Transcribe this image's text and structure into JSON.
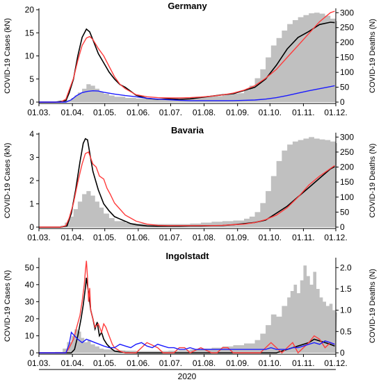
{
  "figure": {
    "bottom_label": "2020"
  },
  "colors": {
    "bars": "#c0c0c0",
    "black": "#000000",
    "red": "#ff3b3b",
    "blue": "#1a1aff"
  },
  "chart_data": [
    {
      "type": "line",
      "title": "Germany",
      "ylabel": "COVID-19 Cases (kN)",
      "y2label": "COVID-19 Deaths (N)",
      "ylim": [
        0,
        20
      ],
      "y2lim": [
        0,
        310
      ],
      "y_ticks": [
        "0",
        "5",
        "10",
        "15",
        "20"
      ],
      "y2_ticks": [
        "0",
        "50",
        "100",
        "150",
        "200",
        "250",
        "300"
      ],
      "x_ticks": [
        "01.03.",
        "01.04.",
        "01.05.",
        "01.06.",
        "01.07.",
        "01.08.",
        "01.09.",
        "01.10.",
        "01.11.",
        "01.12."
      ],
      "bars_deaths": {
        "x": [
          0,
          10,
          20,
          25,
          30,
          33,
          36,
          40,
          44,
          48,
          52,
          56,
          60,
          65,
          70,
          80,
          90,
          100,
          110,
          120,
          130,
          140,
          150,
          160,
          170,
          180,
          185,
          190,
          195,
          200,
          205,
          210,
          215,
          220,
          225,
          230,
          235,
          240,
          245,
          250,
          255,
          260,
          265,
          270,
          275
        ],
        "values": [
          0,
          0.5,
          2,
          6,
          14,
          22,
          32,
          45,
          60,
          55,
          45,
          35,
          28,
          22,
          18,
          14,
          12,
          10,
          8,
          8,
          10,
          14,
          18,
          20,
          25,
          28,
          30,
          40,
          55,
          80,
          110,
          150,
          190,
          215,
          240,
          262,
          275,
          285,
          292,
          298,
          300,
          297,
          290,
          280,
          272
        ]
      },
      "series": [
        {
          "color": "black",
          "axis": "left",
          "x": [
            0,
            15,
            25,
            28,
            32,
            36,
            40,
            44,
            47,
            50,
            55,
            60,
            65,
            70,
            75,
            80,
            90,
            100,
            110,
            120,
            130,
            140,
            150,
            160,
            170,
            180,
            190,
            200,
            210,
            220,
            230,
            240,
            250,
            260,
            270,
            274
          ],
          "values": [
            0,
            0,
            0.3,
            2,
            5,
            10,
            14,
            15.8,
            15.2,
            13.5,
            10.5,
            8.5,
            6.5,
            5,
            3.8,
            3.2,
            1.5,
            0.8,
            0.6,
            0.7,
            0.6,
            0.7,
            1.0,
            1.3,
            1.6,
            1.8,
            2.5,
            3.2,
            5,
            8,
            11.5,
            14,
            15.3,
            16.8,
            17.3,
            17.2
          ]
        },
        {
          "color": "red",
          "axis": "right",
          "x": [
            0,
            20,
            25,
            28,
            32,
            36,
            40,
            44,
            47,
            50,
            55,
            60,
            65,
            70,
            75,
            80,
            90,
            100,
            110,
            120,
            130,
            140,
            150,
            160,
            170,
            180,
            190,
            200,
            210,
            220,
            230,
            240,
            250,
            260,
            270,
            274
          ],
          "values": [
            0,
            0,
            10,
            40,
            80,
            140,
            190,
            215,
            220,
            210,
            180,
            155,
            120,
            85,
            60,
            45,
            25,
            18,
            15,
            14,
            14,
            15,
            17,
            20,
            24,
            30,
            40,
            55,
            80,
            110,
            150,
            190,
            230,
            270,
            300,
            305
          ]
        },
        {
          "color": "blue",
          "axis": "right",
          "x": [
            0,
            25,
            30,
            35,
            40,
            45,
            50,
            55,
            60,
            70,
            80,
            90,
            100,
            110,
            120,
            130,
            140,
            150,
            160,
            170,
            180,
            190,
            200,
            210,
            220,
            230,
            240,
            250,
            260,
            270,
            274
          ],
          "values": [
            0,
            0,
            8,
            22,
            32,
            36,
            38,
            37,
            33,
            27,
            22,
            18,
            13,
            10,
            8,
            6,
            5,
            5,
            5,
            5,
            5,
            6,
            7,
            10,
            15,
            22,
            30,
            38,
            45,
            52,
            55
          ]
        }
      ]
    },
    {
      "type": "line",
      "title": "Bavaria",
      "ylabel": "COVID-19 Cases (kN)",
      "y2label": "COVID-19 Deaths (N)",
      "ylim": [
        0,
        4
      ],
      "y2lim": [
        0,
        310
      ],
      "y_ticks": [
        "0",
        "1",
        "2",
        "3",
        "4"
      ],
      "y2_ticks": [
        "0",
        "50",
        "100",
        "150",
        "200",
        "250",
        "300"
      ],
      "x_ticks": [
        "01.03.",
        "01.04.",
        "01.05.",
        "01.06.",
        "01.07.",
        "01.08.",
        "01.09.",
        "01.10.",
        "01.11.",
        "01.12."
      ],
      "bars_deaths": {
        "x": [
          0,
          10,
          20,
          24,
          28,
          32,
          36,
          40,
          44,
          48,
          52,
          56,
          60,
          65,
          70,
          80,
          90,
          100,
          110,
          120,
          130,
          140,
          150,
          160,
          170,
          180,
          190,
          195,
          200,
          205,
          210,
          215,
          220,
          225,
          230,
          235,
          240,
          245,
          250,
          255,
          260,
          265,
          270,
          275
        ],
        "values": [
          0,
          1,
          5,
          15,
          35,
          60,
          85,
          110,
          120,
          105,
          85,
          65,
          45,
          30,
          20,
          14,
          12,
          10,
          10,
          10,
          10,
          12,
          15,
          18,
          20,
          22,
          28,
          35,
          50,
          80,
          120,
          170,
          220,
          255,
          275,
          285,
          290,
          295,
          300,
          295,
          292,
          290,
          285,
          280
        ]
      },
      "series": [
        {
          "color": "black",
          "axis": "left",
          "x": [
            0,
            20,
            26,
            30,
            34,
            38,
            41,
            43,
            45,
            47,
            50,
            55,
            60,
            65,
            70,
            75,
            80,
            85,
            90,
            100,
            110,
            120,
            130,
            140,
            150,
            160,
            170,
            180,
            190,
            200,
            210,
            220,
            230,
            240,
            250,
            260,
            270,
            274
          ],
          "values": [
            0,
            0,
            0.05,
            0.6,
            1.6,
            2.8,
            3.6,
            3.8,
            3.75,
            3.2,
            2.4,
            1.6,
            1.0,
            0.7,
            0.45,
            0.35,
            0.25,
            0.15,
            0.1,
            0.05,
            0.04,
            0.04,
            0.04,
            0.05,
            0.05,
            0.06,
            0.07,
            0.1,
            0.15,
            0.2,
            0.3,
            0.6,
            0.9,
            1.3,
            1.7,
            2.1,
            2.5,
            2.6
          ]
        },
        {
          "color": "red",
          "axis": "right",
          "x": [
            0,
            20,
            25,
            28,
            32,
            36,
            40,
            43,
            46,
            48,
            50,
            53,
            56,
            60,
            63,
            66,
            70,
            75,
            80,
            85,
            90,
            95,
            100,
            110,
            120,
            130,
            140,
            150,
            160,
            170,
            180,
            190,
            200,
            210,
            220,
            230,
            240,
            250,
            260,
            270,
            274
          ],
          "values": [
            0,
            0,
            5,
            30,
            80,
            150,
            210,
            245,
            250,
            230,
            210,
            200,
            170,
            160,
            130,
            110,
            80,
            60,
            40,
            30,
            20,
            15,
            10,
            6,
            5,
            5,
            5,
            5,
            5,
            6,
            8,
            10,
            15,
            25,
            40,
            65,
            100,
            140,
            170,
            195,
            205
          ]
        }
      ]
    },
    {
      "type": "line",
      "title": "Ingolstadt",
      "ylabel": "COVID-19 Cases (N)",
      "y2label": "COVID-19 Deaths (N)",
      "ylim": [
        0,
        55
      ],
      "y2lim": [
        0,
        2.2
      ],
      "y_ticks": [
        "0",
        "10",
        "20",
        "30",
        "40",
        "50"
      ],
      "y2_ticks": [
        "0",
        "0.5",
        "1.0",
        "1.5",
        "2.0"
      ],
      "x_ticks": [
        "01.03.",
        "01.04.",
        "01.05.",
        "01.06.",
        "01.07.",
        "01.08.",
        "01.09.",
        "01.10.",
        "01.11.",
        "01.12."
      ],
      "bars_deaths": {
        "x": [
          0,
          15,
          22,
          26,
          30,
          33,
          36,
          39,
          42,
          45,
          48,
          52,
          56,
          60,
          70,
          80,
          90,
          100,
          110,
          120,
          130,
          140,
          150,
          160,
          170,
          180,
          190,
          200,
          205,
          210,
          215,
          220,
          225,
          230,
          233,
          236,
          239,
          242,
          245,
          248,
          251,
          254,
          257,
          260,
          263,
          266,
          269,
          272,
          275
        ],
        "values": [
          0,
          0.02,
          0.1,
          0.25,
          0.4,
          0.55,
          0.5,
          0.35,
          0.25,
          0.3,
          0.2,
          0.15,
          0.1,
          0.08,
          0.06,
          0.05,
          0.04,
          0.04,
          0.04,
          0.05,
          0.06,
          0.08,
          0.1,
          0.12,
          0.15,
          0.18,
          0.22,
          0.3,
          0.45,
          0.65,
          0.9,
          0.85,
          1.1,
          1.3,
          1.45,
          1.6,
          1.4,
          1.7,
          2.05,
          1.8,
          1.6,
          1.9,
          1.5,
          1.3,
          1.2,
          1.1,
          1.15,
          1.0,
          0.95
        ]
      },
      "series": [
        {
          "color": "black",
          "axis": "left",
          "x": [
            0,
            30,
            33,
            36,
            39,
            41,
            43,
            44,
            46,
            47,
            48,
            50,
            52,
            54,
            56,
            58,
            60,
            63,
            66,
            70,
            75,
            80,
            90,
            100,
            110,
            120,
            130,
            140,
            150,
            160,
            170,
            180,
            190,
            200,
            210,
            220,
            225,
            230,
            235,
            240,
            245,
            250,
            255,
            260,
            265,
            270,
            274
          ],
          "values": [
            0,
            0,
            2,
            10,
            20,
            28,
            38,
            44,
            35,
            30,
            25,
            20,
            14,
            18,
            10,
            12,
            8,
            5,
            3,
            1,
            0.5,
            0.2,
            0,
            0,
            0,
            0,
            0,
            0,
            0,
            0,
            0,
            0,
            0,
            0,
            0,
            0,
            1,
            2,
            3,
            4,
            5,
            6,
            8,
            7,
            6,
            5,
            4
          ]
        },
        {
          "color": "red",
          "axis": "left",
          "x": [
            0,
            25,
            28,
            32,
            35,
            38,
            40,
            42,
            43,
            44,
            45,
            46,
            47,
            48,
            50,
            52,
            55,
            58,
            60,
            62,
            65,
            68,
            70,
            75,
            80,
            85,
            90,
            95,
            100,
            110,
            115,
            118,
            125,
            130,
            135,
            140,
            150,
            160,
            165,
            170,
            175,
            180,
            190,
            200,
            205,
            210,
            215,
            220,
            225,
            230,
            235,
            240,
            245,
            250,
            255,
            260,
            265,
            270,
            274
          ],
          "values": [
            0,
            0,
            3,
            8,
            15,
            22,
            30,
            40,
            48,
            54,
            44,
            30,
            38,
            25,
            20,
            15,
            17,
            12,
            17,
            15,
            10,
            5,
            3,
            1,
            0,
            0,
            0,
            3,
            6,
            3,
            0,
            0,
            0,
            3,
            3,
            0,
            3,
            0,
            0,
            3,
            3,
            0,
            0,
            0,
            0,
            3,
            6,
            3,
            0,
            3,
            6,
            0,
            3,
            6,
            10,
            8,
            3,
            6,
            5
          ]
        },
        {
          "color": "blue",
          "axis": "left",
          "x": [
            0,
            25,
            28,
            30,
            33,
            36,
            40,
            44,
            48,
            52,
            56,
            60,
            65,
            70,
            75,
            80,
            85,
            90,
            95,
            100,
            105,
            110,
            115,
            120,
            125,
            130,
            135,
            140,
            145,
            150,
            155,
            160,
            165,
            170,
            175,
            180,
            185,
            190,
            195,
            200,
            205,
            210,
            215,
            220,
            225,
            230,
            235,
            240,
            245,
            250,
            255,
            260,
            265,
            270,
            274
          ],
          "values": [
            0,
            0,
            5,
            12,
            10,
            8,
            6,
            8,
            7,
            6,
            5,
            4,
            3,
            3,
            5,
            4,
            3,
            5,
            6,
            4,
            3,
            5,
            4,
            3,
            3,
            2,
            2,
            3,
            2,
            2,
            2,
            2,
            2,
            2,
            2,
            2,
            2,
            2,
            2,
            2,
            2,
            2,
            3,
            2,
            2,
            2,
            3,
            3,
            4,
            5,
            6,
            5,
            7,
            6,
            5
          ]
        }
      ]
    }
  ]
}
